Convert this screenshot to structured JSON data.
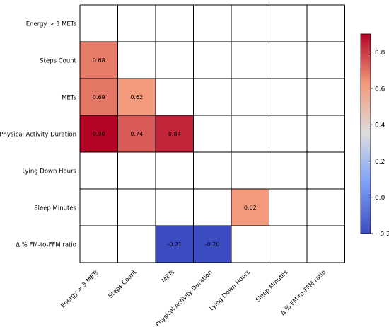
{
  "chart_data": {
    "type": "heatmap",
    "title": "",
    "xlabel": "",
    "ylabel": "",
    "rows": [
      "Energy > 3 METs",
      "Steps Count",
      "METs",
      "Physical Activity Duration",
      "Lying Down Hours",
      "Sleep Minutes",
      "Δ % FM-to-FFM ratio"
    ],
    "columns": [
      "Energy > 3 METs",
      "Steps Count",
      "METs",
      "Physical Activity Duration",
      "Lying Down Hours",
      "Sleep Minutes",
      "Δ % FM-to-FFM ratio"
    ],
    "cells": [
      {
        "row": 1,
        "col": 0,
        "value": 0.68,
        "label": "0.68"
      },
      {
        "row": 2,
        "col": 0,
        "value": 0.69,
        "label": "0.69"
      },
      {
        "row": 2,
        "col": 1,
        "value": 0.62,
        "label": "0.62"
      },
      {
        "row": 3,
        "col": 0,
        "value": 0.9,
        "label": "0.90"
      },
      {
        "row": 3,
        "col": 1,
        "value": 0.74,
        "label": "0.74"
      },
      {
        "row": 3,
        "col": 2,
        "value": 0.84,
        "label": "0.84"
      },
      {
        "row": 5,
        "col": 4,
        "value": 0.62,
        "label": "0.62"
      },
      {
        "row": 6,
        "col": 2,
        "value": -0.21,
        "label": "-0.21"
      },
      {
        "row": 6,
        "col": 3,
        "value": -0.2,
        "label": "-0.20"
      }
    ],
    "colorbar": {
      "vmin": -0.2,
      "vmax": 0.9,
      "ticks": [
        -0.2,
        0.0,
        0.2,
        0.4,
        0.6,
        0.8
      ],
      "tick_labels": [
        "−0.2",
        "0.0",
        "0.2",
        "0.4",
        "0.6",
        "0.8"
      ],
      "colormap": "coolwarm"
    },
    "grid": true,
    "legend": "right"
  }
}
